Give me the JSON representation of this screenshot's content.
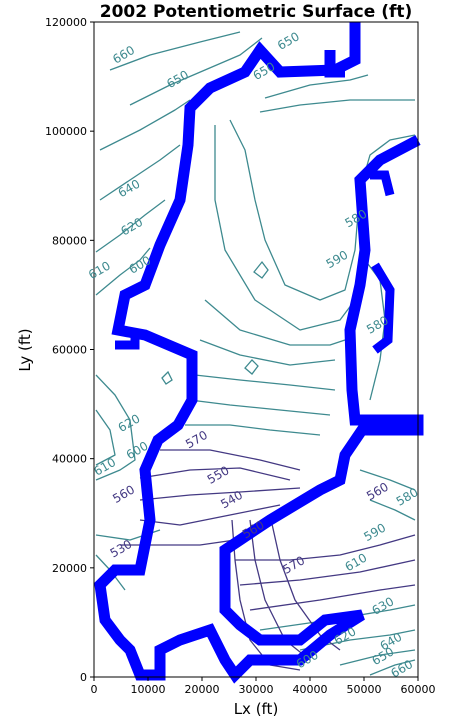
{
  "chart_data": {
    "type": "contour",
    "title": "2002 Potentiometric Surface (ft)",
    "xlabel": "Lx (ft)",
    "ylabel": "Ly (ft)",
    "xlim": [
      0,
      60000
    ],
    "ylim": [
      0,
      120000
    ],
    "xticks": [
      0,
      10000,
      20000,
      30000,
      40000,
      50000,
      60000
    ],
    "yticks": [
      0,
      20000,
      40000,
      60000,
      80000,
      100000,
      120000
    ],
    "grid": false,
    "colors": {
      "boundary": "#0000ff",
      "contour_low": "#443983",
      "contour_high": "#3e8a8f"
    },
    "contour_labels": [
      {
        "text": "660",
        "x": 5500,
        "y": 114000,
        "level": 660
      },
      {
        "text": "650",
        "x": 15500,
        "y": 109500,
        "level": 650
      },
      {
        "text": "650",
        "x": 36000,
        "y": 116500,
        "level": 650
      },
      {
        "text": "650",
        "x": 31500,
        "y": 111000,
        "level": 650
      },
      {
        "text": "640",
        "x": 6500,
        "y": 89500,
        "level": 640
      },
      {
        "text": "620",
        "x": 7000,
        "y": 82500,
        "level": 620
      },
      {
        "text": "610",
        "x": 1000,
        "y": 74500,
        "level": 610
      },
      {
        "text": "600",
        "x": 8500,
        "y": 75500,
        "level": 600
      },
      {
        "text": "590",
        "x": 45000,
        "y": 76500,
        "level": 590
      },
      {
        "text": "580",
        "x": 48500,
        "y": 84000,
        "level": 580
      },
      {
        "text": "580",
        "x": 52500,
        "y": 64500,
        "level": 580
      },
      {
        "text": "620",
        "x": 6500,
        "y": 46500,
        "level": 620
      },
      {
        "text": "600",
        "x": 8000,
        "y": 41500,
        "level": 600
      },
      {
        "text": "610",
        "x": 2000,
        "y": 38500,
        "level": 610
      },
      {
        "text": "570",
        "x": 19000,
        "y": 43500,
        "level": 570
      },
      {
        "text": "560",
        "x": 5500,
        "y": 33500,
        "level": 560
      },
      {
        "text": "550",
        "x": 23000,
        "y": 37000,
        "level": 550
      },
      {
        "text": "540",
        "x": 25500,
        "y": 32500,
        "level": 540
      },
      {
        "text": "530",
        "x": 5000,
        "y": 23500,
        "level": 530
      },
      {
        "text": "560",
        "x": 29500,
        "y": 27000,
        "level": 560
      },
      {
        "text": "560",
        "x": 52500,
        "y": 34000,
        "level": 560
      },
      {
        "text": "580",
        "x": 58000,
        "y": 33000,
        "level": 580
      },
      {
        "text": "570",
        "x": 37000,
        "y": 20500,
        "level": 570
      },
      {
        "text": "590",
        "x": 52000,
        "y": 26500,
        "level": 590
      },
      {
        "text": "610",
        "x": 48500,
        "y": 21000,
        "level": 610
      },
      {
        "text": "630",
        "x": 53500,
        "y": 13000,
        "level": 630
      },
      {
        "text": "620",
        "x": 46500,
        "y": 7500,
        "level": 620
      },
      {
        "text": "640",
        "x": 55000,
        "y": 6500,
        "level": 640
      },
      {
        "text": "650",
        "x": 53500,
        "y": 3800,
        "level": 650
      },
      {
        "text": "660",
        "x": 57000,
        "y": 1500,
        "level": 660
      },
      {
        "text": "600",
        "x": 39500,
        "y": 3200,
        "level": 600
      }
    ]
  }
}
